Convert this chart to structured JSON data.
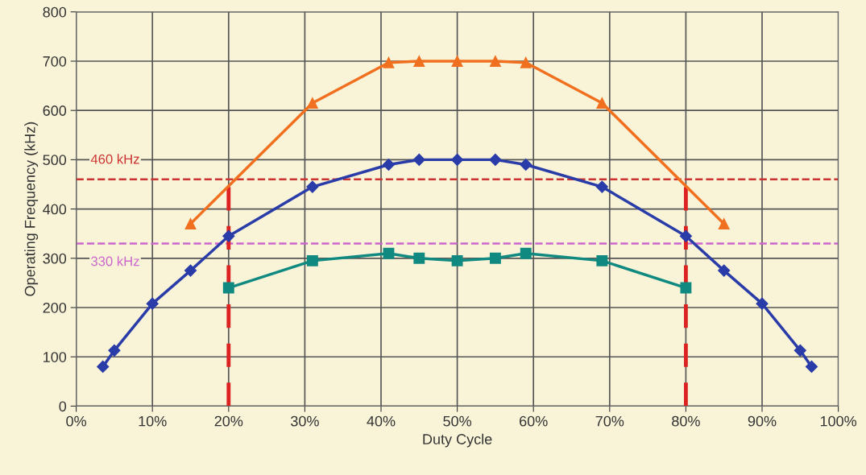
{
  "chart_data": {
    "type": "line",
    "xlabel": "Duty Cycle",
    "ylabel": "Operating Frequency (kHz)",
    "xlim": [
      0,
      100
    ],
    "ylim": [
      0,
      800
    ],
    "xticks": [
      {
        "value": 0,
        "label": "0%"
      },
      {
        "value": 10,
        "label": "10%"
      },
      {
        "value": 20,
        "label": "20%"
      },
      {
        "value": 30,
        "label": "30%"
      },
      {
        "value": 40,
        "label": "40%"
      },
      {
        "value": 50,
        "label": "50%"
      },
      {
        "value": 60,
        "label": "60%"
      },
      {
        "value": 70,
        "label": "70%"
      },
      {
        "value": 80,
        "label": "80%"
      },
      {
        "value": 90,
        "label": "90%"
      },
      {
        "value": 100,
        "label": "100%"
      }
    ],
    "yticks": [
      0,
      100,
      200,
      300,
      400,
      500,
      600,
      700,
      800
    ],
    "grid": true,
    "line_style": "solid",
    "series": [
      {
        "color": "#f07020",
        "marker": "triangle",
        "x": [
          15,
          31,
          41,
          45,
          50,
          55,
          59,
          69,
          85
        ],
        "values": [
          370,
          615,
          697,
          700,
          700,
          700,
          697,
          615,
          370
        ]
      },
      {
        "color": "#2a3ca8",
        "marker": "diamond",
        "x": [
          3.5,
          5,
          10,
          15,
          20,
          31,
          41,
          45,
          50,
          55,
          59,
          69,
          80,
          85,
          90,
          95,
          96.5
        ],
        "values": [
          80,
          113,
          208,
          275,
          345,
          445,
          490,
          500,
          500,
          500,
          490,
          445,
          345,
          275,
          208,
          113,
          80
        ]
      },
      {
        "color": "#108a80",
        "marker": "square",
        "x": [
          20,
          31,
          41,
          45,
          50,
          55,
          59,
          69,
          80
        ],
        "values": [
          240,
          295,
          310,
          300,
          295,
          300,
          310,
          295,
          240
        ]
      }
    ],
    "ref_lines": [
      {
        "axis": "y",
        "value": 460,
        "label": "460 kHz",
        "color": "#cc3333",
        "line_style": "dashed"
      },
      {
        "axis": "y",
        "value": 330,
        "label": "330 kHz",
        "color": "#cc66cc",
        "line_style": "dashed"
      },
      {
        "axis": "x",
        "value": 20,
        "label": null,
        "color": "#dd2222",
        "line_style": "dashed"
      },
      {
        "axis": "x",
        "value": 80,
        "label": null,
        "color": "#dd2222",
        "line_style": "dashed"
      }
    ]
  }
}
